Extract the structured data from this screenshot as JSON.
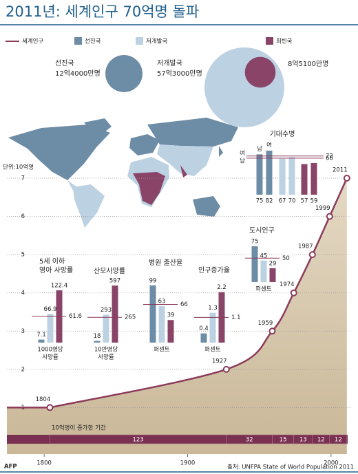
{
  "title": "2011년: 세계인구 70억명 돌파",
  "legend": {
    "line": {
      "name": "세계인구",
      "color": "#8b3a5a"
    },
    "groups": [
      {
        "name": "선진국",
        "color": "#6d8ca6"
      },
      {
        "name": "저개발국",
        "color": "#bcd1e2"
      },
      {
        "name": "최빈국",
        "color": "#8a4468"
      }
    ]
  },
  "bubbles": [
    {
      "name": "선진국",
      "value": 1240000000,
      "value_label": "12억4000만명"
    },
    {
      "name": "저개발국",
      "value": 5730000000,
      "value_label": "57억3000만명"
    },
    {
      "value": 851000000,
      "value_label": "8억5100만명"
    }
  ],
  "source": "출처: UNFPA State of World Population 2011",
  "credit": "AFP",
  "chart_data": [
    {
      "type": "line",
      "y_label": "단위:10억명",
      "x": [
        1804,
        1927,
        1959,
        1974,
        1987,
        1999,
        2011
      ],
      "values": [
        1,
        2,
        3,
        4,
        5,
        6,
        7
      ],
      "xlim": [
        1775,
        2013
      ],
      "ylim": [
        0,
        7
      ],
      "xticks": [
        1800,
        1900,
        2000
      ],
      "yticks": [
        1,
        2,
        3,
        4,
        5,
        6,
        7
      ],
      "grid": true,
      "periods": {
        "title": "10억명이 증가한 기간",
        "values": [
          123,
          32,
          15,
          13,
          12,
          12
        ]
      }
    },
    {
      "type": "bar",
      "title": [
        "5세 이하",
        "영아 사망률"
      ],
      "values": [
        7.1,
        66.9,
        122.4
      ],
      "average": 61.6,
      "unit": [
        "1000명당",
        "사망률"
      ],
      "ylim": [
        0,
        161
      ]
    },
    {
      "type": "bar",
      "title": "산모사망률",
      "values": [
        18,
        293,
        597
      ],
      "average": 265,
      "unit": [
        "10만명당",
        "사망률"
      ],
      "ylim": [
        0,
        720
      ]
    },
    {
      "type": "bar",
      "title": "병원 출산율",
      "values": [
        99,
        63,
        39
      ],
      "average": 66,
      "unit": "퍼센트",
      "ylim": [
        0,
        119
      ]
    },
    {
      "type": "bar",
      "title": "인구증가율",
      "values": [
        0.4,
        1.3,
        2.2
      ],
      "average": 1.1,
      "unit": "퍼센트",
      "ylim": [
        0,
        3
      ]
    },
    {
      "type": "bar",
      "title": "도시인구",
      "values": [
        75,
        45,
        29
      ],
      "average": 50,
      "unit": "퍼센트",
      "ylim": [
        0,
        144
      ]
    },
    {
      "type": "grouped_bar",
      "title": "기대수명",
      "series": [
        {
          "name": "남",
          "values": [
            75,
            67,
            57
          ]
        },
        {
          "name": "여",
          "values": [
            82,
            70,
            59
          ]
        }
      ],
      "averages": [
        {
          "name": "여",
          "value": 72
        },
        {
          "name": "남",
          "value": 68
        }
      ],
      "ylim": [
        0,
        128
      ]
    }
  ]
}
